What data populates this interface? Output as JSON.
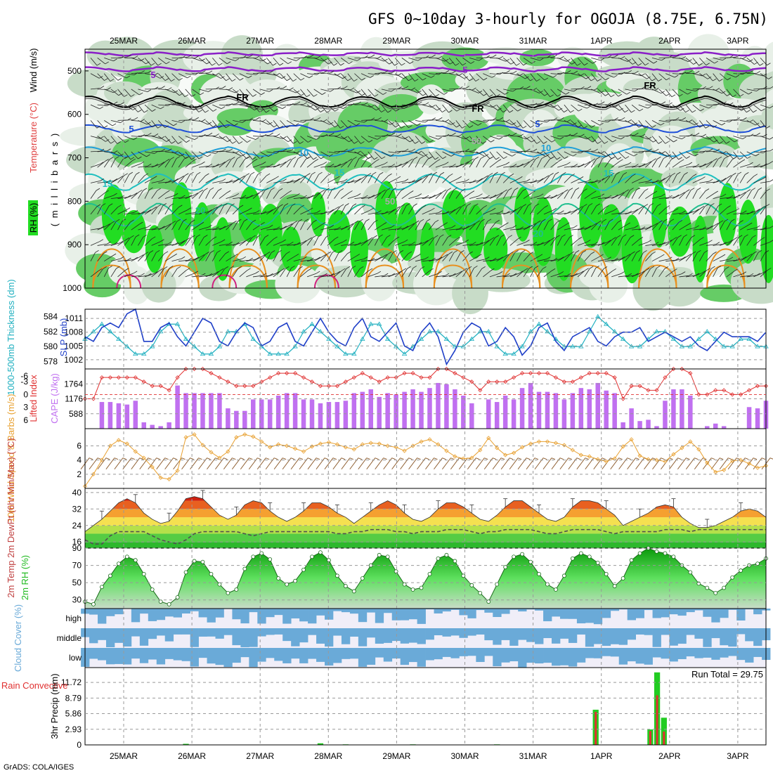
{
  "title": "GFS 0~10day 3-hourly for OGOJA (8.75E, 6.75N)",
  "credit": "GrADS: COLA/IGES",
  "colors": {
    "rh_light": "#e8f0e8",
    "rh_mid": "#c8dcc8",
    "rh_green": "#66cc66",
    "rh_bright": "#22dd22",
    "temp_purple": "#8a1fc8",
    "temp_blue": "#1f4fd8",
    "temp_lightblue": "#1f9fd8",
    "temp_teal": "#1fbfbf",
    "temp_green": "#1fbf8f",
    "temp_orange": "#e89020",
    "temp_magenta": "#d0207f",
    "slp": "#1f3fc8",
    "thickness": "#20b0c0",
    "lifted": "#e03030",
    "cape": "#c070f0",
    "wind": "#e8a030",
    "barb": "#8b5a2b",
    "dewpt": "#505050",
    "rh2m": "#22bb22",
    "cloud": "#6aaad8",
    "cloud_bg": "#f0eef8",
    "precip_total": "#22cc22",
    "precip_conv": "#e03030"
  },
  "chart_data": {
    "type": "meteogram",
    "dates": [
      "25MAR",
      "26MAR",
      "27MAR",
      "28MAR",
      "29MAR",
      "30MAR",
      "31MAR",
      "1APR",
      "2APR",
      "3APR"
    ],
    "panels": [
      {
        "name": "pressure-cross-section",
        "type": "heatmap",
        "ylabel_rh": "RH (%)",
        "ylabel_temp": "Temperature (°C)",
        "ylabel_wind": "Wind (m/s)",
        "ylabel_units": "( m i l l i b a r s )",
        "yticks": [
          "500",
          "600",
          "700",
          "800",
          "900",
          "1000"
        ],
        "ylim": [
          1000,
          450
        ],
        "contour_labels": [
          "5",
          "5",
          "FR",
          "FR",
          "FR",
          "5",
          "5",
          "10",
          "10",
          "15",
          "15",
          "15",
          "20",
          "20",
          "50",
          "50"
        ]
      },
      {
        "name": "slp-thickness",
        "type": "line",
        "ylabel_left": "1000-500mb Thickness (dm)",
        "ylabel_right": "SLP (mb)",
        "yticks_left": [
          "584",
          "582",
          "580",
          "578"
        ],
        "yticks_right": [
          "1011",
          "1008",
          "1005",
          "1002"
        ],
        "slp_range": [
          1000,
          1013
        ],
        "thickness_range": [
          577,
          585
        ],
        "slp": [
          1007,
          1006,
          1009,
          1010,
          1009,
          1012,
          1013,
          1006,
          1006,
          1009,
          1010,
          1007,
          1005,
          1008,
          1011,
          1010,
          1006,
          1005,
          1008,
          1010,
          1009,
          1005,
          1006,
          1009,
          1010,
          1006,
          1005,
          1008,
          1011,
          1008,
          1006,
          1005,
          1009,
          1011,
          1007,
          1006,
          1008,
          1010,
          1005,
          1004,
          1008,
          1010,
          1007,
          1001,
          1004,
          1008,
          1010,
          1009,
          1005,
          1006,
          1009,
          1007,
          1003,
          1005,
          1009,
          1010,
          1006,
          1004,
          1007,
          1008,
          1009,
          1006,
          1005,
          1007,
          1008,
          1008,
          1009,
          1006,
          1007,
          1008,
          1007,
          1006,
          1007,
          1005,
          1004,
          1006,
          1008,
          1007,
          1007,
          1007,
          1006,
          1008
        ],
        "thickness": [
          581,
          582,
          583,
          582,
          581,
          580,
          579,
          579,
          580,
          582,
          583,
          583,
          581,
          580,
          579,
          579,
          580,
          582,
          582,
          583,
          581,
          580,
          579,
          579,
          579,
          580,
          582,
          583,
          582,
          581,
          580,
          579,
          579,
          581,
          583,
          583,
          581,
          580,
          579,
          580,
          581,
          582,
          582,
          581,
          580,
          580,
          581,
          582,
          582,
          580,
          579,
          579,
          580,
          582,
          583,
          582,
          581,
          580,
          580,
          580,
          582,
          584,
          583,
          582,
          581,
          580,
          580,
          581,
          582,
          582,
          581,
          580,
          580,
          581,
          582,
          581,
          580,
          580,
          581,
          581,
          580,
          580
        ],
        "colors": {
          "slp": "#1f3fc8",
          "thickness": "#20b0c0"
        }
      },
      {
        "name": "cape-lifted",
        "type": "bar",
        "ylabel_left": "Lifted Index",
        "ylabel_right": "CAPE (J/kg)",
        "yticks_left": [
          "-3",
          "0",
          "3",
          "6"
        ],
        "yticks_right": [
          "1764",
          "1176",
          "588"
        ],
        "yticks_left_top": "-6",
        "cape_range": [
          0,
          2352
        ],
        "li_range": [
          -6,
          8
        ],
        "cape": [
          0,
          0,
          1050,
          1050,
          1000,
          950,
          1100,
          250,
          150,
          100,
          250,
          1700,
          1400,
          1400,
          1400,
          1400,
          1400,
          800,
          700,
          700,
          1150,
          1150,
          1150,
          1300,
          1400,
          1400,
          1150,
          1150,
          1000,
          1050,
          1050,
          1100,
          1400,
          1450,
          1550,
          1250,
          1400,
          1350,
          1450,
          1550,
          1450,
          1600,
          1800,
          1750,
          1550,
          1300,
          1000,
          0,
          1150,
          1050,
          1300,
          1150,
          1600,
          1800,
          1450,
          1450,
          1400,
          1150,
          1400,
          1600,
          1550,
          1800,
          1500,
          1400,
          250,
          800,
          300,
          350,
          100,
          1100,
          1550,
          1550,
          1300,
          0,
          100,
          200,
          100,
          0,
          0,
          850,
          800,
          1100
        ],
        "lifted_index": [
          1,
          1,
          -4,
          -4,
          -4,
          -4,
          -4,
          -3,
          -2,
          -2,
          -1,
          -4,
          -6,
          -6,
          -6,
          -5,
          -4,
          -3,
          -2,
          -2,
          -2,
          -3,
          -4,
          -5,
          -5,
          -5,
          -4,
          -3,
          -2,
          -2,
          -2,
          -3,
          -4,
          -5,
          -4,
          -3,
          -4,
          -4,
          -5,
          -5,
          -4,
          -4,
          -6,
          -6,
          -5,
          -4,
          -3,
          -1,
          -3,
          -3,
          -3,
          -4,
          -5,
          -5,
          -5,
          -5,
          -4,
          -3,
          -3,
          -4,
          -5,
          -5,
          -5,
          -4,
          1,
          -2,
          -2,
          -1,
          -1,
          -4,
          -6,
          -6,
          -5,
          0,
          0,
          -1,
          -1,
          0,
          0,
          -1,
          -2,
          -2
        ],
        "colors": {
          "cape": "#c070f0",
          "lifted": "#e03030"
        }
      },
      {
        "name": "wind-10m",
        "type": "line",
        "ylabel": "10m Wind Speed & Barbs (m/s)",
        "yticks": [
          "6",
          "4",
          "2"
        ],
        "ylim": [
          0,
          8
        ],
        "values": [
          0.3,
          2,
          4,
          6,
          6.8,
          6.3,
          5.2,
          4.3,
          3,
          1.5,
          1.3,
          2.5,
          7.2,
          7.6,
          6.1,
          5.1,
          4.3,
          5.2,
          7.2,
          7.6,
          7.3,
          6.6,
          5.8,
          6.2,
          6,
          5.6,
          5.2,
          5.9,
          6.3,
          6.5,
          6.2,
          5.8,
          5.5,
          6.2,
          6.4,
          6.3,
          6,
          5.8,
          5.3,
          6,
          6.6,
          6.9,
          6.2,
          5.3,
          4.5,
          4.2,
          4.3,
          5.4,
          7.1,
          5.7,
          4.7,
          5,
          5.8,
          6.3,
          6.6,
          6.6,
          6.4,
          6.1,
          5.4,
          4.7,
          4.5,
          4.1,
          3.8,
          4.2,
          5.9,
          6.9,
          4.6,
          4.1,
          4,
          3.8,
          4.8,
          5.7,
          6.6,
          5.5,
          3.6,
          2.3,
          2.6,
          3.9,
          4,
          3.5,
          2.9,
          3.2
        ],
        "colors": {
          "line": "#e8a030",
          "barb": "#8b5a2b"
        }
      },
      {
        "name": "temp-2m",
        "type": "area",
        "ylabel": "2m Temp 2m DewPt (6hr Min/Max) (°C)",
        "yticks": [
          "40",
          "32",
          "24",
          "16"
        ],
        "ylim": [
          13,
          42
        ],
        "temp": [
          21,
          24,
          27,
          31,
          35,
          37,
          35,
          30,
          27,
          25,
          26,
          31,
          37,
          38,
          37,
          33,
          29,
          27,
          29,
          34,
          36,
          35,
          31,
          28,
          26,
          28,
          31,
          35,
          35,
          33,
          30,
          28,
          25,
          28,
          31,
          34,
          36,
          34,
          30,
          27,
          26,
          28,
          32,
          35,
          35,
          33,
          30,
          27,
          26,
          29,
          33,
          36,
          36,
          33,
          30,
          27,
          26,
          28,
          33,
          36,
          36,
          35,
          32,
          29,
          24,
          26,
          28,
          30,
          33,
          34,
          33,
          28,
          25,
          23,
          23,
          24,
          26,
          28,
          31,
          32,
          31,
          28
        ],
        "dewpt": [
          17,
          15,
          15,
          19,
          21,
          21,
          21,
          21,
          19,
          17,
          16,
          15,
          17,
          20,
          21,
          21,
          21,
          21,
          21,
          20,
          19,
          20,
          21,
          21,
          21,
          21,
          21,
          21,
          21,
          21,
          20,
          20,
          21,
          21,
          22,
          22,
          22,
          21,
          21,
          20,
          21,
          21,
          21,
          22,
          22,
          22,
          21,
          20,
          21,
          21,
          22,
          22,
          22,
          22,
          21,
          20,
          20,
          21,
          22,
          22,
          22,
          22,
          21,
          20,
          21,
          21,
          21,
          21,
          21,
          22,
          22,
          22,
          21,
          22,
          22,
          22,
          22,
          22,
          22,
          22,
          22,
          22
        ],
        "colors": {
          "dewpt": "#505050"
        }
      },
      {
        "name": "rh-2m",
        "type": "area",
        "ylabel": "2m RH (%)",
        "yticks": [
          "90",
          "70",
          "50",
          "30"
        ],
        "ylim": [
          20,
          90
        ],
        "values": [
          28,
          25,
          45,
          58,
          72,
          80,
          76,
          60,
          42,
          28,
          25,
          33,
          62,
          75,
          74,
          60,
          48,
          38,
          42,
          66,
          80,
          84,
          77,
          55,
          48,
          52,
          65,
          80,
          85,
          76,
          58,
          46,
          40,
          55,
          70,
          82,
          80,
          63,
          48,
          42,
          44,
          60,
          78,
          82,
          75,
          58,
          47,
          38,
          28,
          48,
          68,
          80,
          83,
          74,
          60,
          48,
          42,
          58,
          78,
          84,
          80,
          73,
          60,
          46,
          55,
          76,
          84,
          90,
          86,
          84,
          80,
          70,
          62,
          49,
          44,
          38,
          44,
          56,
          64,
          70,
          72,
          78
        ],
        "colors": {
          "line": "#22bb22"
        }
      },
      {
        "name": "cloud-cover",
        "type": "area",
        "ylabel": "Cloud Cover (%)",
        "levels": [
          "high",
          "middle",
          "low"
        ]
      },
      {
        "name": "precip-3hr",
        "type": "bar",
        "ylabel_left": "Total / Rain Convective",
        "ylabel_right": "3hr Precip (mm)",
        "yticks": [
          "11.72",
          "8.79",
          "5.86",
          "2.93",
          "0"
        ],
        "ylim": [
          0,
          14.5
        ],
        "annotation": "Run Total = 29.75",
        "total": [
          0,
          0,
          0,
          0,
          0,
          0,
          0,
          0,
          0,
          0,
          0,
          0,
          0.2,
          0,
          0,
          0,
          0,
          0,
          0,
          0,
          0,
          0,
          0,
          0,
          0,
          0,
          0,
          0,
          0.3,
          0,
          0,
          0.1,
          0,
          0,
          0,
          0,
          0,
          0,
          0,
          0.1,
          0,
          0,
          0,
          0,
          0,
          0,
          0,
          0,
          0,
          0.1,
          0,
          0,
          0,
          0,
          0,
          0,
          0,
          0,
          0,
          0,
          0,
          0,
          0,
          0,
          0,
          0,
          0,
          0,
          0,
          0,
          0,
          0,
          0,
          0,
          0,
          0,
          0,
          0,
          0,
          0,
          0,
          0
        ],
        "spikes": [
          {
            "day": 7.0,
            "total": 6.6,
            "conv": 6.2
          },
          {
            "day": 7.8,
            "total": 2.9,
            "conv": 2.6
          },
          {
            "day": 7.9,
            "total": 13.6,
            "conv": 9.3
          },
          {
            "day": 8.0,
            "total": 5.1,
            "conv": 2.5
          }
        ],
        "colors": {
          "total": "#22cc22",
          "conv": "#e03030"
        }
      }
    ]
  }
}
